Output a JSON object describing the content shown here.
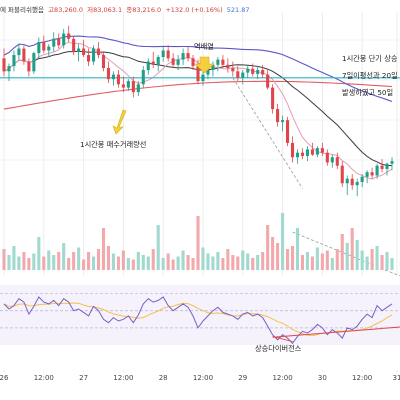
{
  "header": {
    "prefix": "에 퍼블리쉬했음",
    "high": "고83,260.0",
    "low": "저83,063.1",
    "close": "종83,216.0",
    "change": "+132.0 (+0.16%)",
    "volume": "521.87"
  },
  "note_box": {
    "lines": [
      "1시간봉 단기 상승",
      "7일이평선과 20일",
      "발생하였고 50일"
    ]
  },
  "annotations": {
    "dead_cross": "역배열",
    "buy_volume": "1시간봉 매수거래량선",
    "bullish_divergence": "상승다이버전스"
  },
  "colors": {
    "up": "#1f9e8a",
    "down": "#e0454b",
    "ma_short": "#e89bb8",
    "ma_mid": "#3b3b3b",
    "ma_long": "#5b57c8",
    "ma_200": "#e06060",
    "support": "#2bb3c0",
    "rsi": "#7a5fc8",
    "rsi_signal": "#f2c14e",
    "arrow": "#f4d03f"
  },
  "chart_data": [
    {
      "type": "candlestick",
      "x_ticks": [
        "26",
        "12:00",
        "27",
        "12:00",
        "28",
        "12:00",
        "29",
        "12:00",
        "30",
        "12:00",
        "31"
      ],
      "candles": [
        [
          83.9,
          84.05,
          83.62,
          83.7
        ],
        [
          83.7,
          83.82,
          83.55,
          83.78
        ],
        [
          83.78,
          84.02,
          83.7,
          83.95
        ],
        [
          83.95,
          84.12,
          83.88,
          84.05
        ],
        [
          84.05,
          84.1,
          83.8,
          83.85
        ],
        [
          83.85,
          83.9,
          83.62,
          83.7
        ],
        [
          83.7,
          84.0,
          83.66,
          83.98
        ],
        [
          83.98,
          84.22,
          83.9,
          84.15
        ],
        [
          84.15,
          84.25,
          83.98,
          84.02
        ],
        [
          84.02,
          84.12,
          83.92,
          84.08
        ],
        [
          84.08,
          84.3,
          84.0,
          84.2
        ],
        [
          84.2,
          84.28,
          84.05,
          84.1
        ],
        [
          84.1,
          84.35,
          84.05,
          84.28
        ],
        [
          84.28,
          84.4,
          84.15,
          84.2
        ],
        [
          84.2,
          84.25,
          83.95,
          84.0
        ],
        [
          84.0,
          84.12,
          83.85,
          84.05
        ],
        [
          84.05,
          84.18,
          83.92,
          83.95
        ],
        [
          83.95,
          84.05,
          83.78,
          83.85
        ],
        [
          83.85,
          84.1,
          83.8,
          84.05
        ],
        [
          84.05,
          84.15,
          83.9,
          83.95
        ],
        [
          83.95,
          84.0,
          83.7,
          83.75
        ],
        [
          83.75,
          83.85,
          83.52,
          83.58
        ],
        [
          83.58,
          83.7,
          83.48,
          83.65
        ],
        [
          83.65,
          83.72,
          83.45,
          83.5
        ],
        [
          83.5,
          83.62,
          83.38,
          83.45
        ],
        [
          83.45,
          83.58,
          83.4,
          83.55
        ],
        [
          83.55,
          83.62,
          83.3,
          83.38
        ],
        [
          83.38,
          83.55,
          83.32,
          83.5
        ],
        [
          83.5,
          83.78,
          83.45,
          83.72
        ],
        [
          83.72,
          83.9,
          83.65,
          83.85
        ],
        [
          83.85,
          84.0,
          83.75,
          83.8
        ],
        [
          83.8,
          83.95,
          83.7,
          83.92
        ],
        [
          83.92,
          84.08,
          83.85,
          84.02
        ],
        [
          84.02,
          84.1,
          83.85,
          83.9
        ],
        [
          83.9,
          83.98,
          83.75,
          83.8
        ],
        [
          83.8,
          83.95,
          83.72,
          83.88
        ],
        [
          83.88,
          84.05,
          83.8,
          83.98
        ],
        [
          83.98,
          84.08,
          83.85,
          83.9
        ],
        [
          83.9,
          83.95,
          83.72,
          83.78
        ],
        [
          83.78,
          83.88,
          83.5,
          83.55
        ],
        [
          83.55,
          83.7,
          83.48,
          83.65
        ],
        [
          83.65,
          83.75,
          83.58,
          83.72
        ],
        [
          83.72,
          83.85,
          83.62,
          83.8
        ],
        [
          83.8,
          83.92,
          83.7,
          83.88
        ],
        [
          83.88,
          83.95,
          83.75,
          83.8
        ],
        [
          83.8,
          83.9,
          83.68,
          83.75
        ],
        [
          83.75,
          83.85,
          83.62,
          83.7
        ],
        [
          83.7,
          83.78,
          83.55,
          83.6
        ],
        [
          83.6,
          83.72,
          83.5,
          83.68
        ],
        [
          83.68,
          83.8,
          83.6,
          83.74
        ],
        [
          83.74,
          83.82,
          83.62,
          83.66
        ],
        [
          83.66,
          83.78,
          83.58,
          83.72
        ],
        [
          83.72,
          83.8,
          83.6,
          83.65
        ],
        [
          83.65,
          83.72,
          83.42,
          83.45
        ],
        [
          83.45,
          83.5,
          83.05,
          83.12
        ],
        [
          83.12,
          83.2,
          82.85,
          82.92
        ],
        [
          82.92,
          83.02,
          82.78,
          82.95
        ],
        [
          82.95,
          83.0,
          82.55,
          82.6
        ],
        [
          82.6,
          82.7,
          82.3,
          82.38
        ],
        [
          82.38,
          82.5,
          82.28,
          82.45
        ],
        [
          82.45,
          82.52,
          82.35,
          82.4
        ],
        [
          82.4,
          82.55,
          82.32,
          82.5
        ],
        [
          82.5,
          82.6,
          82.4,
          82.42
        ],
        [
          82.42,
          82.55,
          82.38,
          82.52
        ],
        [
          82.52,
          82.6,
          82.4,
          82.45
        ],
        [
          82.45,
          82.5,
          82.25,
          82.3
        ],
        [
          82.3,
          82.42,
          82.22,
          82.38
        ],
        [
          82.38,
          82.45,
          82.2,
          82.25
        ],
        [
          82.25,
          82.32,
          81.92,
          81.98
        ],
        [
          81.98,
          82.1,
          81.8,
          82.05
        ],
        [
          82.05,
          82.12,
          81.88,
          81.95
        ],
        [
          81.95,
          82.05,
          81.78,
          82.0
        ],
        [
          82.0,
          82.12,
          81.92,
          82.08
        ],
        [
          82.08,
          82.18,
          81.98,
          82.15
        ],
        [
          82.15,
          82.22,
          82.05,
          82.1
        ],
        [
          82.1,
          82.28,
          82.05,
          82.25
        ],
        [
          82.25,
          82.35,
          82.15,
          82.2
        ],
        [
          82.2,
          82.3,
          82.1,
          82.28
        ],
        [
          82.28,
          82.38,
          82.18,
          82.32
        ]
      ],
      "volumes": [
        14,
        10,
        16,
        9,
        12,
        8,
        11,
        22,
        9,
        13,
        10,
        12,
        18,
        8,
        12,
        15,
        7,
        12,
        9,
        14,
        28,
        16,
        11,
        9,
        13,
        8,
        7,
        12,
        10,
        9,
        14,
        30,
        8,
        11,
        7,
        9,
        13,
        10,
        8,
        36,
        15,
        11,
        9,
        12,
        8,
        14,
        10,
        9,
        13,
        11,
        8,
        10,
        12,
        30,
        22,
        18,
        38,
        14,
        16,
        28,
        10,
        12,
        9,
        15,
        11,
        13,
        8,
        14,
        24,
        18,
        28,
        20,
        13,
        9,
        14,
        16,
        10,
        12,
        8
      ],
      "overlays": {
        "support_level": 83.6,
        "annotations": [
          "역배열",
          "1시간봉 매수거래량선"
        ]
      }
    },
    {
      "type": "line",
      "name": "RSI",
      "values": [
        58,
        52,
        56,
        64,
        60,
        46,
        55,
        66,
        60,
        58,
        62,
        56,
        64,
        60,
        50,
        52,
        48,
        44,
        55,
        50,
        40,
        36,
        42,
        38,
        40,
        44,
        36,
        45,
        58,
        64,
        60,
        62,
        66,
        56,
        50,
        54,
        58,
        54,
        44,
        30,
        38,
        44,
        50,
        54,
        48,
        46,
        44,
        40,
        46,
        48,
        44,
        46,
        42,
        32,
        22,
        16,
        22,
        18,
        12,
        20,
        26,
        24,
        28,
        34,
        30,
        22,
        28,
        24,
        18,
        30,
        28,
        32,
        40,
        46,
        42,
        56,
        50,
        54,
        58
      ],
      "annotation": "상승다이버전스"
    }
  ]
}
